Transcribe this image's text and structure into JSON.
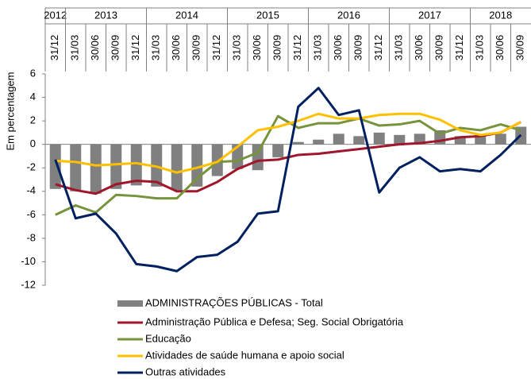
{
  "chart_data": {
    "type": "bar",
    "y_label": "Em percentagem",
    "periods": [
      {
        "label": "2012",
        "categories": [
          "31/12"
        ]
      },
      {
        "label": "2013",
        "categories": [
          "31/03",
          "30/06",
          "30/09",
          "31/12"
        ]
      },
      {
        "label": "2014",
        "categories": [
          "31/03",
          "30/06",
          "30/09",
          "31/12"
        ]
      },
      {
        "label": "2015",
        "categories": [
          "31/03",
          "30/06",
          "30/09",
          "31/12"
        ]
      },
      {
        "label": "2016",
        "categories": [
          "31/03",
          "30/06",
          "30/09",
          "31/12"
        ]
      },
      {
        "label": "2017",
        "categories": [
          "31/03",
          "30/06",
          "30/09",
          "31/12"
        ]
      },
      {
        "label": "2018",
        "categories": [
          "31/03",
          "30/06",
          "30/09"
        ]
      }
    ],
    "ylim": [
      -12,
      6
    ],
    "yticks": [
      6,
      4,
      2,
      0,
      -2,
      -4,
      -6,
      -8,
      -10,
      -12
    ],
    "series": [
      {
        "name": "ADMINISTRAÇÕES PÚBLICAS - Total",
        "type": "bar",
        "color": "#808080",
        "values": [
          -3.8,
          -4.0,
          -4.2,
          -3.8,
          -3.5,
          -3.6,
          -3.9,
          -3.6,
          -2.7,
          -2.1,
          -2.2,
          -1.1,
          0.2,
          0.4,
          0.9,
          0.7,
          1.0,
          0.8,
          0.9,
          1.2,
          0.7,
          0.8,
          0.9,
          1.5
        ]
      },
      {
        "name": "Administração Pública e Defesa; Seg. Social Obrigatória",
        "type": "line",
        "color": "#a0162a",
        "values": [
          -3.4,
          -3.9,
          -4.2,
          -3.4,
          -3.1,
          -3.2,
          -4.0,
          -4.0,
          -3.2,
          -2.1,
          -1.4,
          -1.3,
          -0.9,
          -0.8,
          -0.6,
          -0.4,
          -0.2,
          0.0,
          0.1,
          0.3,
          0.6,
          0.7,
          1.0,
          1.9
        ]
      },
      {
        "name": "Educação",
        "type": "line",
        "color": "#77933c",
        "values": [
          -6.0,
          -5.2,
          -5.8,
          -4.3,
          -4.4,
          -4.6,
          -4.6,
          -2.9,
          -1.5,
          -1.4,
          -0.7,
          2.4,
          1.4,
          1.8,
          1.8,
          2.2,
          1.6,
          1.7,
          2.0,
          0.9,
          1.4,
          1.2,
          1.7,
          1.2
        ]
      },
      {
        "name": "Atividades de saúde humana e apoio social",
        "type": "line",
        "color": "#ffc000",
        "values": [
          -1.4,
          -1.5,
          -1.8,
          -1.7,
          -1.6,
          -1.9,
          -2.4,
          -2.0,
          -1.5,
          -0.2,
          1.2,
          1.5,
          2.0,
          2.6,
          2.2,
          2.2,
          2.5,
          2.6,
          2.6,
          2.1,
          1.2,
          0.8,
          1.0,
          1.9
        ]
      },
      {
        "name": "Outras atividades",
        "type": "line",
        "color": "#002060",
        "values": [
          -1.3,
          -6.3,
          -5.9,
          -7.6,
          -10.2,
          -10.4,
          -10.8,
          -9.6,
          -9.4,
          -8.3,
          -5.9,
          -5.7,
          3.2,
          4.8,
          2.5,
          2.9,
          -4.1,
          -2.0,
          -1.1,
          -2.3,
          -2.1,
          -2.3,
          -0.9,
          0.8
        ]
      }
    ]
  }
}
